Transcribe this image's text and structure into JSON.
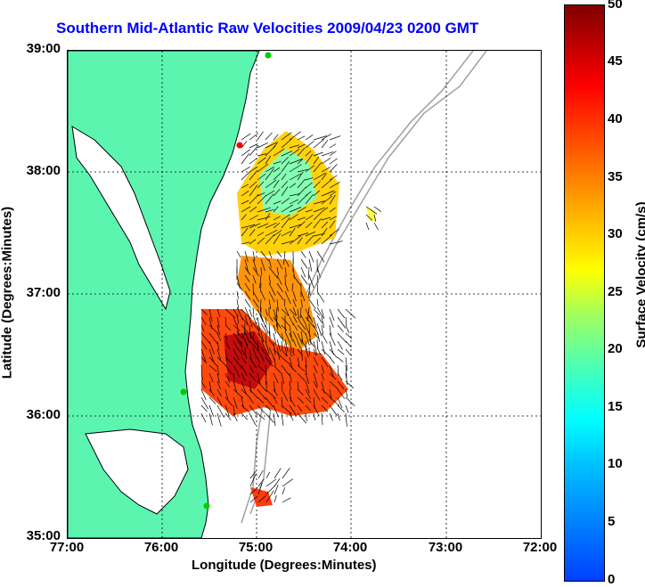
{
  "title": "Southern Mid-Atlantic Raw Velocities 2009/04/23 0200 GMT",
  "xlabel": "Longitude (Degrees:Minutes)",
  "ylabel": "Latitude (Degrees:Minutes)",
  "colorbar_label": "Surface Velocity (cm/s)",
  "lat_ticks": [
    "39:00",
    "38:00",
    "37:00",
    "36:00",
    "35:00"
  ],
  "lon_ticks": [
    "77:00",
    "76:00",
    "75:00",
    "74:00",
    "73:00",
    "72:00"
  ],
  "colorbar_ticks": [
    "50",
    "45",
    "40",
    "35",
    "30",
    "25",
    "20",
    "15",
    "10",
    "5",
    "0"
  ],
  "colors": {
    "land": "#5cf5b0",
    "coast": "#000000",
    "title": "#0000ff",
    "bathymetry": "#a0a0a0",
    "station": "#00cc00"
  }
}
